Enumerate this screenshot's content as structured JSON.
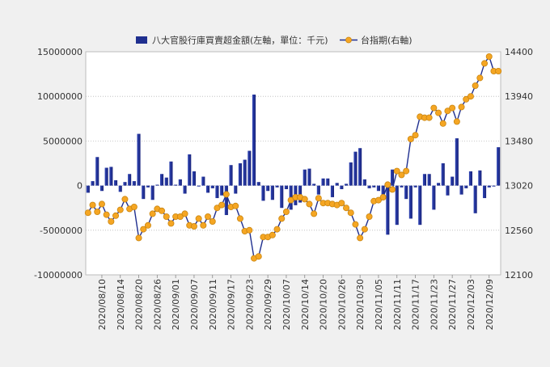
{
  "chart_data": {
    "type": "bar",
    "legend": {
      "position": "top",
      "bar_series_name": "八大官股行庫買賣超金額(左軸，單位：千元)",
      "line_series_name": "台指期(右軸)"
    },
    "left_axis": {
      "ylim": [
        -10000000,
        15000000
      ],
      "ticks": [
        "-10000000",
        "-5000000",
        "0",
        "5000000",
        "10000000",
        "15000000"
      ]
    },
    "right_axis": {
      "ylim": [
        12100,
        14400
      ],
      "ticks": [
        "12100",
        "12560",
        "13020",
        "13480",
        "13940",
        "14400"
      ]
    },
    "x_tick_labels": [
      {
        "index": 3,
        "label": "2020/08/10"
      },
      {
        "index": 7,
        "label": "2020/08/14"
      },
      {
        "index": 11,
        "label": "2020/08/20"
      },
      {
        "index": 15,
        "label": "2020/08/26"
      },
      {
        "index": 19,
        "label": "2020/09/01"
      },
      {
        "index": 23,
        "label": "2020/09/07"
      },
      {
        "index": 27,
        "label": "2020/09/11"
      },
      {
        "index": 31,
        "label": "2020/09/17"
      },
      {
        "index": 35,
        "label": "2020/09/23"
      },
      {
        "index": 39,
        "label": "2020/09/29"
      },
      {
        "index": 43,
        "label": "2020/10/07"
      },
      {
        "index": 47,
        "label": "2020/10/14"
      },
      {
        "index": 51,
        "label": "2020/10/20"
      },
      {
        "index": 55,
        "label": "2020/10/26"
      },
      {
        "index": 59,
        "label": "2020/10/30"
      },
      {
        "index": 63,
        "label": "2020/11/05"
      },
      {
        "index": 67,
        "label": "2020/11/11"
      },
      {
        "index": 71,
        "label": "2020/11/17"
      },
      {
        "index": 75,
        "label": "2020/11/23"
      },
      {
        "index": 79,
        "label": "2020/11/27"
      },
      {
        "index": 83,
        "label": "2020/12/03"
      },
      {
        "index": 87,
        "label": "2020/12/09"
      }
    ],
    "bar_values": [
      -800000,
      500000,
      3200000,
      -600000,
      2000000,
      2100000,
      600000,
      -700000,
      400000,
      1300000,
      500000,
      5800000,
      -1500000,
      -200000,
      -1600000,
      100000,
      1300000,
      900000,
      2700000,
      100000,
      700000,
      -900000,
      3500000,
      1600000,
      -100000,
      1000000,
      -800000,
      -300000,
      -1400000,
      -1100000,
      -3300000,
      2300000,
      -900000,
      2500000,
      2900000,
      3900000,
      10200000,
      400000,
      -1700000,
      -600000,
      -1600000,
      -200000,
      -2500000,
      -400000,
      -2700000,
      -2200000,
      -1900000,
      1800000,
      1900000,
      200000,
      -1000000,
      800000,
      800000,
      -1300000,
      300000,
      -400000,
      200000,
      2600000,
      3800000,
      4200000,
      700000,
      -300000,
      -200000,
      -600000,
      -1000000,
      -5500000,
      1800000,
      -4400000,
      -200000,
      -1500000,
      -3700000,
      -200000,
      -4400000,
      1300000,
      1300000,
      -2700000,
      300000,
      2500000,
      -1100000,
      1000000,
      5300000,
      -1000000,
      -300000,
      1600000,
      -3100000,
      1700000,
      -1400000,
      -200000,
      -100000,
      4300000
    ],
    "line_values": [
      12740,
      12820,
      12750,
      12830,
      12720,
      12650,
      12710,
      12770,
      12880,
      12780,
      12800,
      12480,
      12570,
      12610,
      12730,
      12780,
      12760,
      12700,
      12630,
      12700,
      12700,
      12730,
      12610,
      12600,
      12680,
      12610,
      12700,
      12650,
      12790,
      12820,
      12930,
      12800,
      12810,
      12680,
      12550,
      12560,
      12270,
      12290,
      12490,
      12490,
      12510,
      12570,
      12680,
      12750,
      12870,
      12900,
      12900,
      12880,
      12830,
      12730,
      12890,
      12840,
      12840,
      12830,
      12820,
      12840,
      12790,
      12740,
      12620,
      12480,
      12570,
      12700,
      12860,
      12870,
      12900,
      13030,
      12980,
      13170,
      13130,
      13170,
      13500,
      13540,
      13730,
      13720,
      13720,
      13820,
      13770,
      13660,
      13790,
      13820,
      13680,
      13830,
      13910,
      13940,
      14050,
      14130,
      14280,
      14350,
      14200,
      14200
    ]
  }
}
